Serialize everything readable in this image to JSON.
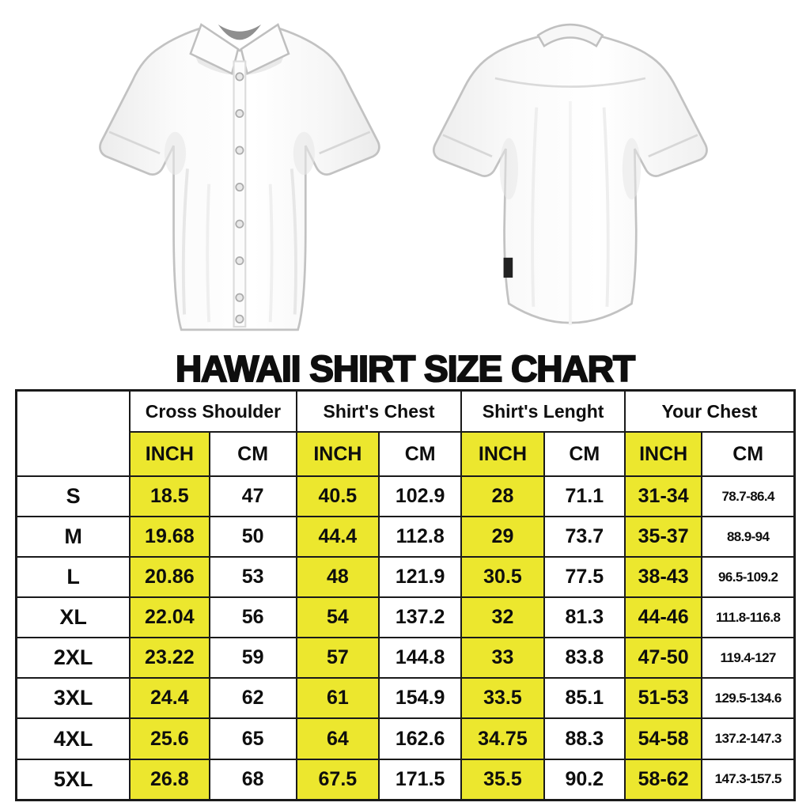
{
  "title": "HAWAII SHIRT SIZE CHART",
  "shirts": {
    "front_label": "white short-sleeve shirt front view",
    "back_label": "white short-sleeve shirt back view"
  },
  "table": {
    "corner_label": "",
    "groups": [
      "Cross Shoulder",
      "Shirt's Chest",
      "Shirt's Lenght",
      "Your Chest"
    ],
    "units": [
      "INCH",
      "CM"
    ],
    "rows": [
      {
        "size": "S",
        "values": [
          "18.5",
          "47",
          "40.5",
          "102.9",
          "28",
          "71.1",
          "31-34",
          "78.7-86.4"
        ]
      },
      {
        "size": "M",
        "values": [
          "19.68",
          "50",
          "44.4",
          "112.8",
          "29",
          "73.7",
          "35-37",
          "88.9-94"
        ]
      },
      {
        "size": "L",
        "values": [
          "20.86",
          "53",
          "48",
          "121.9",
          "30.5",
          "77.5",
          "38-43",
          "96.5-109.2"
        ]
      },
      {
        "size": "XL",
        "values": [
          "22.04",
          "56",
          "54",
          "137.2",
          "32",
          "81.3",
          "44-46",
          "111.8-116.8"
        ]
      },
      {
        "size": "2XL",
        "values": [
          "23.22",
          "59",
          "57",
          "144.8",
          "33",
          "83.8",
          "47-50",
          "119.4-127"
        ]
      },
      {
        "size": "3XL",
        "values": [
          "24.4",
          "62",
          "61",
          "154.9",
          "33.5",
          "85.1",
          "51-53",
          "129.5-134.6"
        ]
      },
      {
        "size": "4XL",
        "values": [
          "25.6",
          "65",
          "64",
          "162.6",
          "34.75",
          "88.3",
          "54-58",
          "137.2-147.3"
        ]
      },
      {
        "size": "5XL",
        "values": [
          "26.8",
          "68",
          "67.5",
          "171.5",
          "35.5",
          "90.2",
          "58-62",
          "147.3-157.5"
        ]
      }
    ]
  },
  "colors": {
    "highlight_yellow": "#ece72e",
    "border_black": "#1a1a1a",
    "text_black": "#0e0e0e"
  }
}
